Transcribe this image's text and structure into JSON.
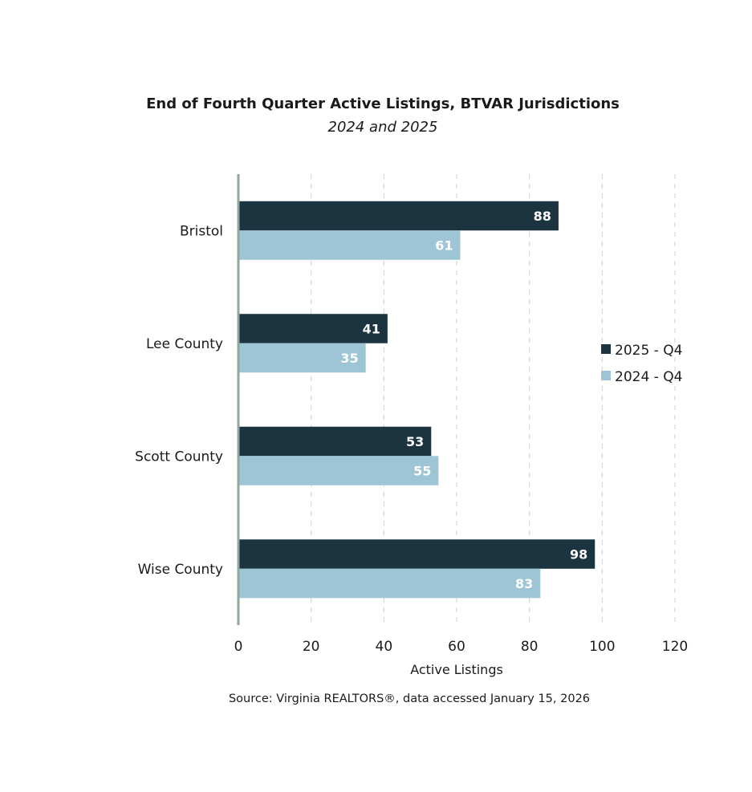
{
  "chart_data": {
    "type": "bar",
    "orientation": "horizontal",
    "title": "End of Fourth Quarter Active Listings, BTVAR Jurisdictions",
    "subtitle": "2024 and 2025",
    "categories": [
      "Bristol",
      "Lee County",
      "Scott County",
      "Wise County"
    ],
    "series": [
      {
        "name": "2025 - Q4",
        "color": "#1c3340",
        "values": [
          88,
          41,
          53,
          98
        ]
      },
      {
        "name": "2024 - Q4",
        "color": "#9dc5d6",
        "values": [
          61,
          35,
          55,
          83
        ]
      }
    ],
    "xlabel": "Active Listings",
    "ylabel": "",
    "xlim": [
      0,
      120
    ],
    "xticks": [
      "0",
      "20",
      "40",
      "60",
      "80",
      "100",
      "120"
    ],
    "grid": true,
    "legend_position": "right",
    "source": "Source: Virginia REALTORS®, data accessed January 15, 2026"
  }
}
